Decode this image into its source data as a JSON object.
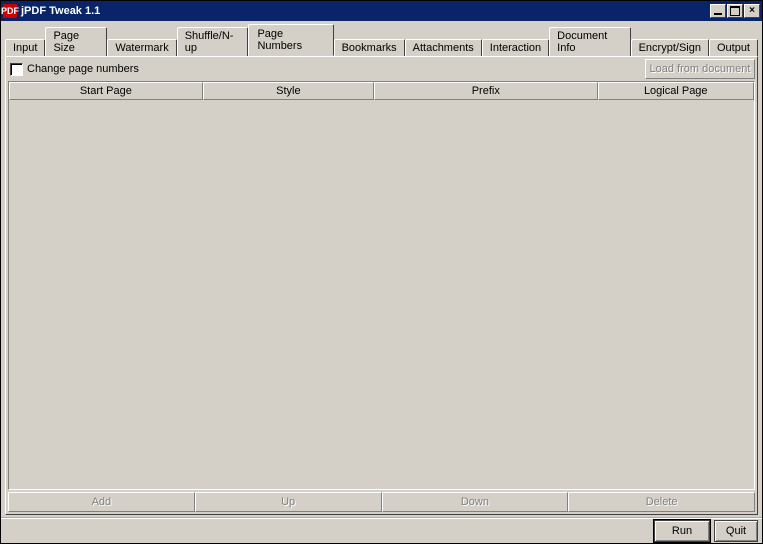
{
  "window": {
    "title": "jPDF Tweak 1.1",
    "icon_label": "PDF"
  },
  "window_controls": {
    "minimize": "_",
    "maximize": "□",
    "close": "×"
  },
  "tabs": [
    {
      "label": "Input",
      "active": false
    },
    {
      "label": "Page Size",
      "active": false
    },
    {
      "label": "Watermark",
      "active": false
    },
    {
      "label": "Shuffle/N-up",
      "active": false
    },
    {
      "label": "Page Numbers",
      "active": true
    },
    {
      "label": "Bookmarks",
      "active": false
    },
    {
      "label": "Attachments",
      "active": false
    },
    {
      "label": "Interaction",
      "active": false
    },
    {
      "label": "Document Info",
      "active": false
    },
    {
      "label": "Encrypt/Sign",
      "active": false
    },
    {
      "label": "Output",
      "active": false
    }
  ],
  "panel": {
    "checkbox_label": "Change page numbers",
    "checkbox_checked": false,
    "load_button": "Load from document",
    "columns": [
      "Start Page",
      "Style",
      "Prefix",
      "Logical Page"
    ],
    "rows": [],
    "action_buttons": [
      "Add",
      "Up",
      "Down",
      "Delete"
    ]
  },
  "footer": {
    "run": "Run",
    "quit": "Quit"
  },
  "colors": {
    "titlebar": "#0a246a",
    "face": "#d4d0c8",
    "disabled_text": "#808080"
  }
}
